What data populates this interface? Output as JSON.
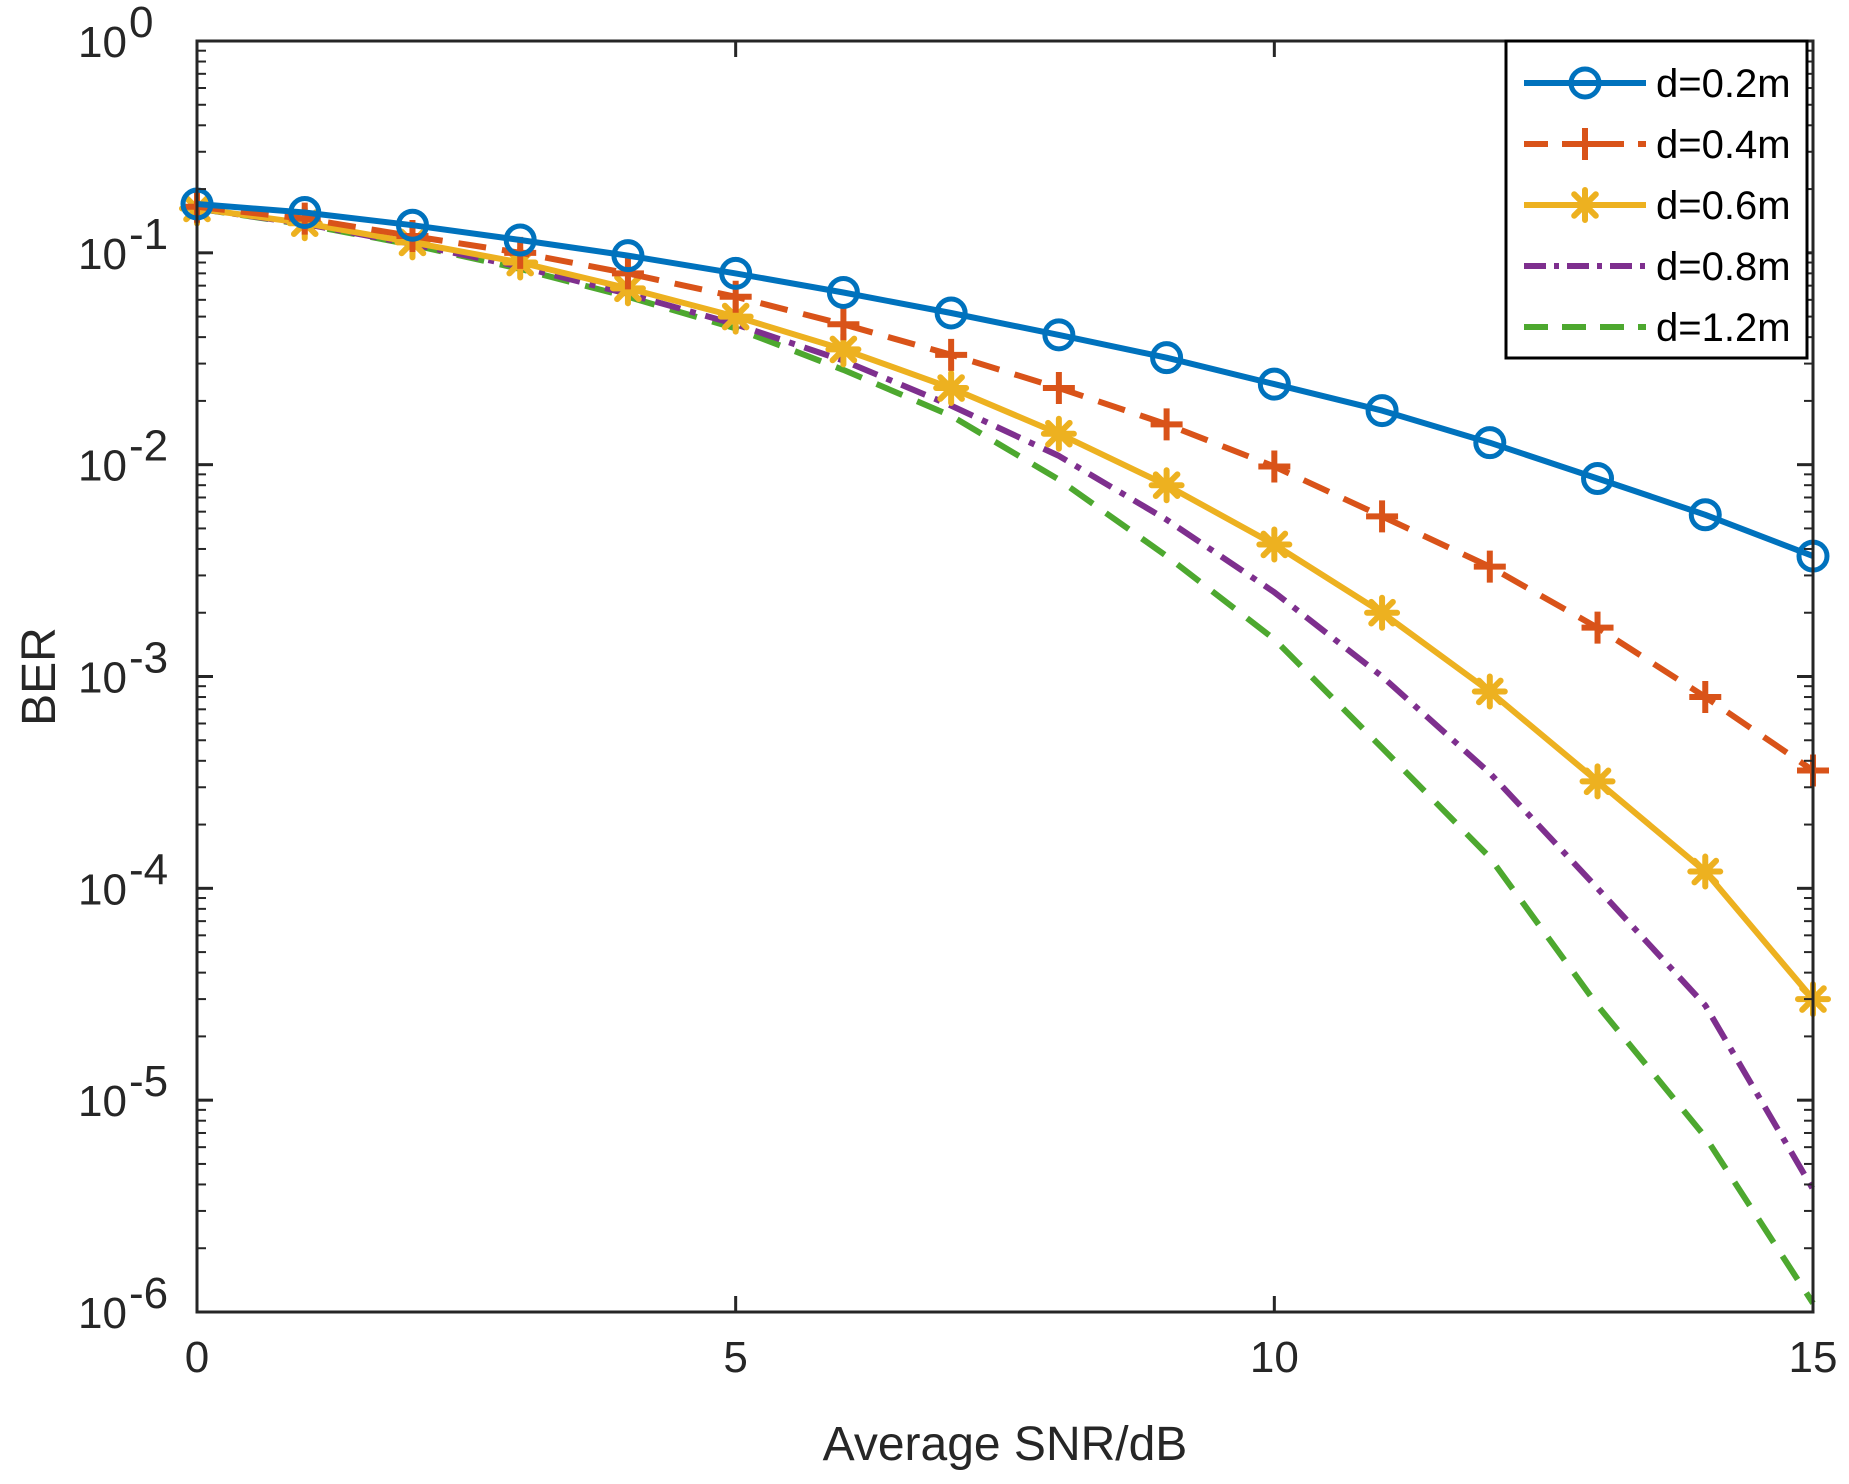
{
  "chart_data": {
    "type": "line",
    "title": "",
    "xlabel": "Average SNR/dB",
    "ylabel": "BER",
    "xlim": [
      0,
      15
    ],
    "ylim": [
      1e-06,
      1
    ],
    "yscale": "log",
    "grid": false,
    "legend_position": "top-right",
    "x_ticks": [
      0,
      5,
      10,
      15
    ],
    "y_ticks": [
      {
        "base": "10",
        "exp": "0",
        "value": 1
      },
      {
        "base": "10",
        "exp": "-1",
        "value": 0.1
      },
      {
        "base": "10",
        "exp": "-2",
        "value": 0.01
      },
      {
        "base": "10",
        "exp": "-3",
        "value": 0.001
      },
      {
        "base": "10",
        "exp": "-4",
        "value": 0.0001
      },
      {
        "base": "10",
        "exp": "-5",
        "value": 1e-05
      },
      {
        "base": "10",
        "exp": "-6",
        "value": 1e-06
      }
    ],
    "x": [
      0,
      1,
      2,
      3,
      4,
      5,
      6,
      7,
      8,
      9,
      10,
      11,
      12,
      13,
      14,
      15
    ],
    "series": [
      {
        "name": "d=0.2m",
        "color": "#0072BD",
        "dash": "solid",
        "marker": "circle",
        "values": [
          0.17,
          0.155,
          0.135,
          0.115,
          0.097,
          0.08,
          0.065,
          0.052,
          0.041,
          0.032,
          0.024,
          0.018,
          0.0127,
          0.0086,
          0.0058,
          0.0037
        ]
      },
      {
        "name": "d=0.4m",
        "color": "#D95319",
        "dash": "dashed",
        "marker": "plus",
        "values": [
          0.165,
          0.145,
          0.12,
          0.1,
          0.08,
          0.062,
          0.046,
          0.033,
          0.023,
          0.0155,
          0.0098,
          0.0057,
          0.0033,
          0.0017,
          0.0008,
          0.00036
        ]
      },
      {
        "name": "d=0.6m",
        "color": "#EDB120",
        "dash": "solid",
        "marker": "asterisk",
        "values": [
          0.162,
          0.138,
          0.112,
          0.09,
          0.068,
          0.05,
          0.035,
          0.023,
          0.014,
          0.008,
          0.0042,
          0.002,
          0.00085,
          0.00032,
          0.00012,
          3e-05
        ]
      },
      {
        "name": "d=0.8m",
        "color": "#7E2F8E",
        "dash": "dashdot",
        "marker": "none",
        "values": [
          0.162,
          0.137,
          0.11,
          0.086,
          0.064,
          0.046,
          0.031,
          0.019,
          0.011,
          0.0055,
          0.0025,
          0.001,
          0.00035,
          0.0001,
          2.8e-05,
          3.8e-06
        ]
      },
      {
        "name": "d=1.2m",
        "color": "#4DA82F",
        "dash": "dashed",
        "marker": "none",
        "values": [
          0.162,
          0.136,
          0.109,
          0.084,
          0.062,
          0.044,
          0.028,
          0.017,
          0.0085,
          0.0037,
          0.0015,
          0.00046,
          0.00014,
          2.8e-05,
          6.7e-06,
          1.1e-06
        ]
      }
    ]
  }
}
